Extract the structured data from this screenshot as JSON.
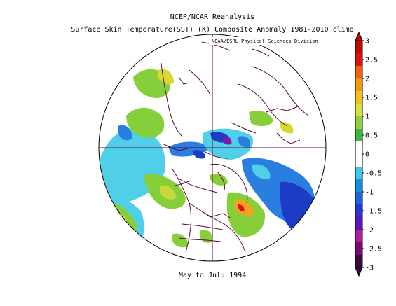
{
  "title": {
    "line1": "NCEP/NCAR Reanalysis",
    "line2": "Surface Skin Temperature(SST) (K) Composite Anomaly 1981-2010 climo"
  },
  "credit": "NOAA/ESRL Physical Sciences Division",
  "period": "May to Jul: 1994",
  "colorbar": {
    "labels": [
      "3",
      "2.5",
      "2",
      "1.5",
      "1",
      "0.5",
      "0",
      "-0.5",
      "-1",
      "-1.5",
      "-2",
      "-2.5",
      "-3"
    ],
    "colors": [
      "#3b0a3a",
      "#7a0a6e",
      "#b01c9c",
      "#5b16c0",
      "#2a35d8",
      "#1d66d8",
      "#1a8ce0",
      "#3cc8e8",
      "#ffffff",
      "#ffffff",
      "#3fb83a",
      "#8fd040",
      "#d8e040",
      "#f4c020",
      "#f49a10",
      "#f06010",
      "#e01010",
      "#c00808"
    ]
  }
}
